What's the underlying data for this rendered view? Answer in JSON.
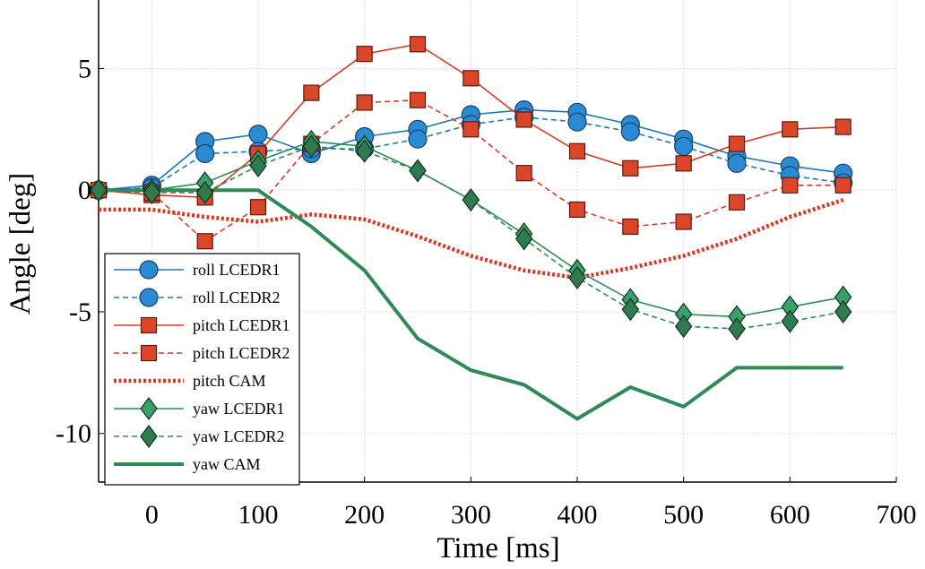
{
  "chart_data": {
    "type": "line",
    "title": "",
    "xlabel": "Time [ms]",
    "ylabel": "Angle [deg]",
    "xlim": [
      -50,
      700
    ],
    "ylim": [
      -12,
      8
    ],
    "xticks": [
      0,
      100,
      200,
      300,
      400,
      500,
      600,
      700
    ],
    "xtick_labels": [
      "0",
      "100",
      "200",
      "300",
      "400",
      "500",
      "600",
      "700"
    ],
    "yticks": [
      -10,
      -5,
      0,
      5
    ],
    "ytick_labels": [
      "-10",
      "-5",
      "0",
      "5"
    ],
    "grid": true,
    "legend_position": "bottom-left",
    "series": [
      {
        "name": "roll LCEDR1",
        "color": "#1f77b4",
        "dash": "solid",
        "marker": "circle",
        "width": "thin",
        "x": [
          -50,
          0,
          50,
          100,
          150,
          200,
          250,
          300,
          350,
          400,
          450,
          500,
          550,
          600,
          650
        ],
        "y": [
          0,
          0.2,
          2.0,
          2.3,
          1.5,
          2.2,
          2.5,
          3.1,
          3.3,
          3.2,
          2.7,
          2.1,
          1.4,
          1.0,
          0.7
        ]
      },
      {
        "name": "roll LCEDR2",
        "color": "#1f77b4",
        "dash": "dashed",
        "marker": "circle",
        "width": "thin",
        "x": [
          -50,
          0,
          50,
          100,
          150,
          200,
          250,
          300,
          350,
          400,
          450,
          500,
          550,
          600,
          650
        ],
        "y": [
          0,
          0.1,
          1.5,
          1.6,
          1.7,
          1.7,
          2.1,
          2.7,
          3.0,
          2.8,
          2.4,
          1.8,
          1.1,
          0.6,
          0.3
        ]
      },
      {
        "name": "pitch LCEDR1",
        "color": "#d23c23",
        "dash": "solid",
        "marker": "square",
        "width": "thin",
        "x": [
          -50,
          0,
          50,
          100,
          150,
          200,
          250,
          300,
          350,
          400,
          450,
          500,
          550,
          600,
          650
        ],
        "y": [
          0,
          -0.2,
          -0.3,
          1.5,
          4.0,
          5.6,
          6.0,
          4.6,
          2.9,
          1.6,
          0.9,
          1.1,
          1.9,
          2.5,
          2.6
        ]
      },
      {
        "name": "pitch LCEDR2",
        "color": "#d23c23",
        "dash": "dashed",
        "marker": "square",
        "width": "thin",
        "x": [
          -50,
          0,
          50,
          100,
          150,
          200,
          250,
          300,
          350,
          400,
          450,
          500,
          550,
          600,
          650
        ],
        "y": [
          0,
          -0.1,
          -2.1,
          -0.7,
          1.9,
          3.6,
          3.7,
          2.5,
          0.7,
          -0.8,
          -1.5,
          -1.3,
          -0.5,
          0.2,
          0.2
        ]
      },
      {
        "name": "pitch CAM",
        "color": "#d23c23",
        "dash": "dotted",
        "marker": "none",
        "width": "thick",
        "x": [
          -50,
          0,
          50,
          100,
          150,
          200,
          250,
          300,
          350,
          400,
          450,
          500,
          550,
          600,
          650
        ],
        "y": [
          -0.8,
          -0.8,
          -1.1,
          -1.3,
          -1.0,
          -1.2,
          -1.9,
          -2.7,
          -3.3,
          -3.6,
          -3.2,
          -2.7,
          -2.0,
          -1.1,
          -0.4
        ]
      },
      {
        "name": "yaw LCEDR1",
        "color": "#2e8b57",
        "dash": "solid",
        "marker": "diamond",
        "width": "thin",
        "x": [
          -50,
          0,
          50,
          100,
          150,
          200,
          250,
          300,
          350,
          400,
          450,
          500,
          550,
          600,
          650
        ],
        "y": [
          0,
          0,
          0.3,
          1.2,
          2.0,
          1.8,
          0.8,
          -0.4,
          -1.8,
          -3.3,
          -4.5,
          -5.1,
          -5.2,
          -4.8,
          -4.4
        ]
      },
      {
        "name": "yaw LCEDR2",
        "color": "#2e8b57",
        "dash": "dashed",
        "marker": "diamond",
        "width": "thin",
        "x": [
          -50,
          0,
          50,
          100,
          150,
          200,
          250,
          300,
          350,
          400,
          450,
          500,
          550,
          600,
          650
        ],
        "y": [
          0,
          -0.1,
          -0.1,
          1.0,
          1.8,
          1.6,
          0.8,
          -0.4,
          -2.0,
          -3.6,
          -4.9,
          -5.6,
          -5.7,
          -5.4,
          -5.0
        ]
      },
      {
        "name": "yaw CAM",
        "color": "#2e8b57",
        "dash": "solid",
        "marker": "none",
        "width": "thick",
        "x": [
          -50,
          0,
          50,
          100,
          150,
          200,
          250,
          300,
          350,
          400,
          450,
          500,
          550,
          650
        ],
        "y": [
          0,
          0,
          0,
          0,
          -1.5,
          -3.3,
          -6.1,
          -7.4,
          -8.0,
          -9.4,
          -8.1,
          -8.9,
          -7.3,
          -7.3
        ]
      }
    ]
  }
}
